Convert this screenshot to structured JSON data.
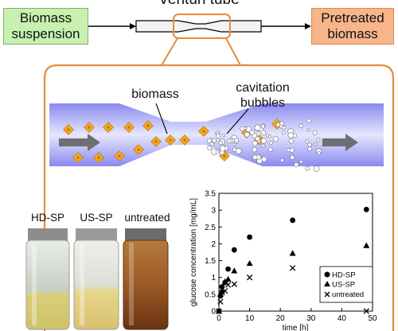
{
  "header": {
    "title": "Venturi tube",
    "left_box": [
      "Biomass",
      "suspension"
    ],
    "right_box": [
      "Pretreated",
      "biomass"
    ]
  },
  "venturi": {
    "biomass_label": "biomass",
    "bubbles_label": [
      "cavitation",
      "bubbles"
    ]
  },
  "jars": [
    "HD-SP",
    "US-SP",
    "untreated"
  ],
  "colors": {
    "orange_frame": "#e98a3a",
    "left_box": "#c8f0b0",
    "right_box": "#f7b589",
    "flow": "#9c9cf2",
    "particle": "#f4a81d"
  },
  "chart_data": {
    "type": "scatter",
    "xlabel": "time [h]",
    "ylabel": "glucose concentration [mg/mL]",
    "xlim": [
      0,
      50
    ],
    "ylim": [
      0,
      3.5
    ],
    "xticks": [
      "0",
      "10",
      "20",
      "30",
      "40",
      "50"
    ],
    "yticks": [
      "0",
      "0.5",
      "1",
      "1.5",
      "2",
      "2.5",
      "3",
      "3.5"
    ],
    "legend_position": "bottom-right",
    "series": [
      {
        "name": "HD-SP",
        "marker": "circle",
        "x": [
          0,
          0.5,
          1,
          2,
          3,
          5,
          10,
          24,
          48
        ],
        "y": [
          0,
          0.45,
          0.72,
          0.85,
          1.25,
          1.82,
          2.2,
          2.7,
          3.02
        ]
      },
      {
        "name": "US-SP",
        "marker": "triangle",
        "x": [
          0,
          0.5,
          1,
          2,
          3,
          5,
          10,
          24,
          48
        ],
        "y": [
          0,
          0.5,
          0.6,
          0.88,
          0.95,
          1.2,
          1.42,
          1.72,
          1.95
        ]
      },
      {
        "name": "untreated",
        "marker": "x",
        "x": [
          0,
          0.5,
          1,
          2,
          3,
          5,
          10,
          24,
          48
        ],
        "y": [
          0,
          0.28,
          0.55,
          0.6,
          0.78,
          0.8,
          1.0,
          1.28,
          0.0
        ]
      }
    ]
  }
}
